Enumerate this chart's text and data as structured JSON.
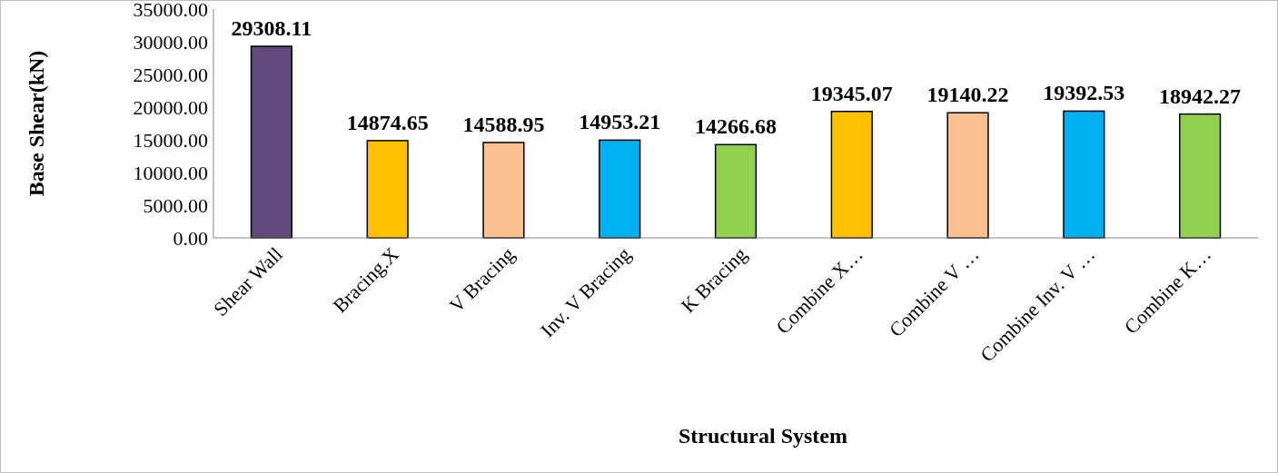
{
  "chart_data": {
    "type": "bar",
    "xlabel": "Structural System",
    "ylabel": "Base Shear(kN)",
    "categories": [
      "Shear Wall",
      "Bracing.X",
      "V Bracing",
      "Inv. V Bracing",
      "K Bracing",
      "Combine X…",
      "Combine V …",
      "Combine Inv. V …",
      "Combine K…"
    ],
    "values": [
      29308.11,
      14874.65,
      14588.95,
      14953.21,
      14266.68,
      19345.07,
      19140.22,
      19392.53,
      18942.27
    ],
    "colors": [
      "#604a7b",
      "#ffc000",
      "#fac090",
      "#00b0f0",
      "#92d050",
      "#ffc000",
      "#fac090",
      "#00b0f0",
      "#92d050"
    ],
    "value_labels": [
      "29308.11",
      "14874.65",
      "14588.95",
      "14953.21",
      "14266.68",
      "19345.07",
      "19140.22",
      "19392.53",
      "18942.27"
    ],
    "ylim": [
      0,
      35000
    ],
    "yticks": [
      {
        "value": 0,
        "label": "0.00"
      },
      {
        "value": 5000,
        "label": "5000.00"
      },
      {
        "value": 10000,
        "label": "10000.00"
      },
      {
        "value": 15000,
        "label": "15000.00"
      },
      {
        "value": 20000,
        "label": "20000.00"
      },
      {
        "value": 25000,
        "label": "25000.00"
      },
      {
        "value": 30000,
        "label": "30000.00"
      },
      {
        "value": 35000,
        "label": "35000.00"
      }
    ],
    "grid": false
  }
}
